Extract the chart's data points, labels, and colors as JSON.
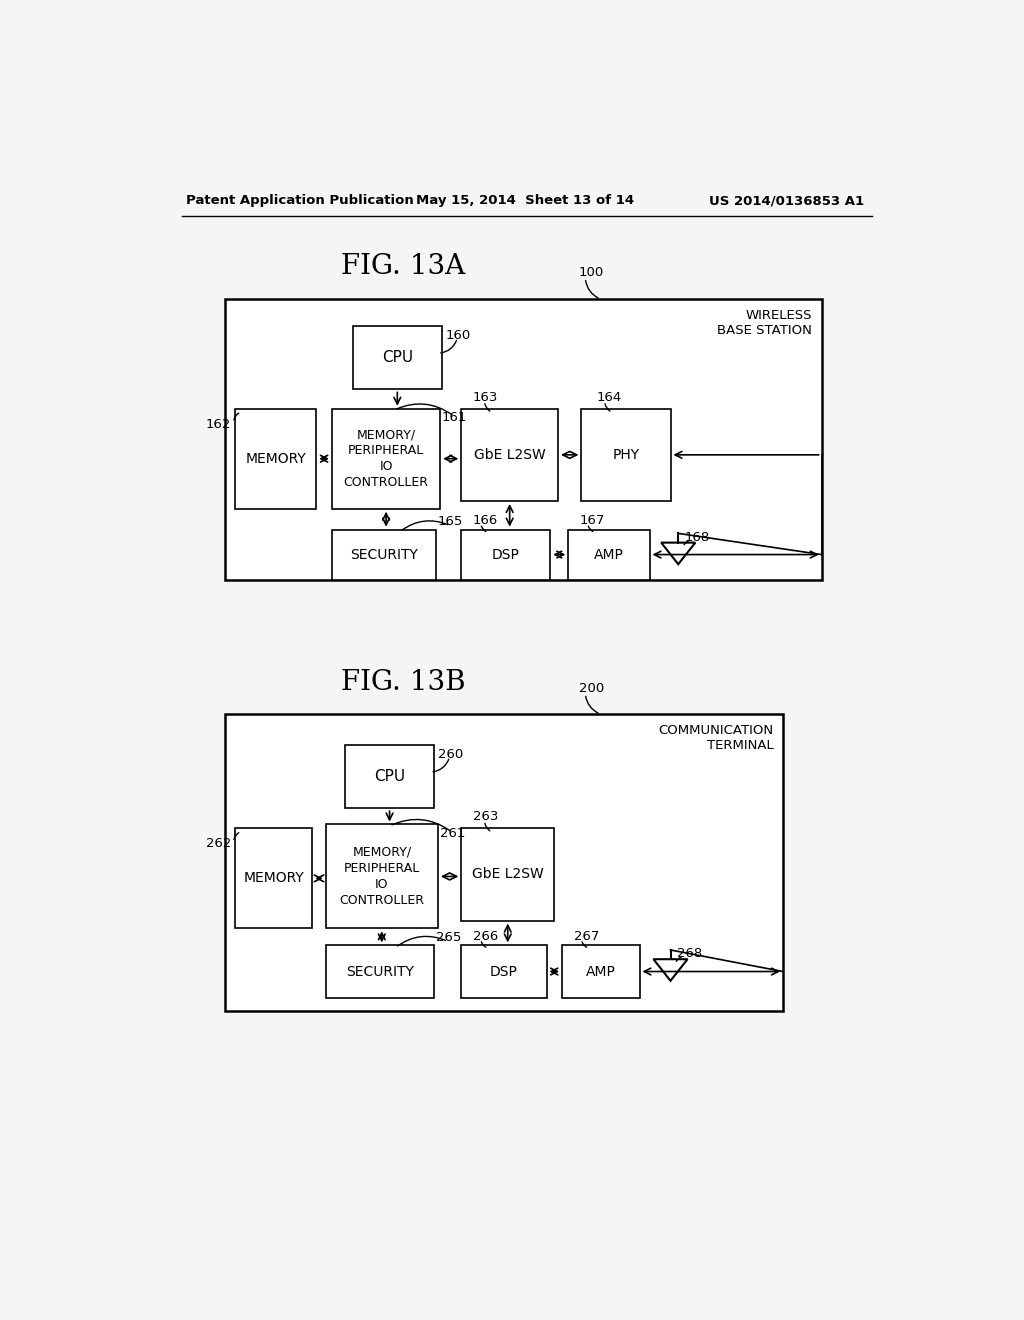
{
  "header_left": "Patent Application Publication",
  "header_mid": "May 15, 2014  Sheet 13 of 14",
  "header_right": "US 2014/0136853 A1",
  "fig_a_title": "FIG. 13A",
  "fig_b_title": "FIG. 13B",
  "fig_a_label": "100",
  "fig_b_label": "200",
  "fig_a_station": "WIRELESS\nBASE STATION",
  "fig_b_station": "COMMUNICATION\nTERMINAL",
  "background_color": "#f5f5f5"
}
